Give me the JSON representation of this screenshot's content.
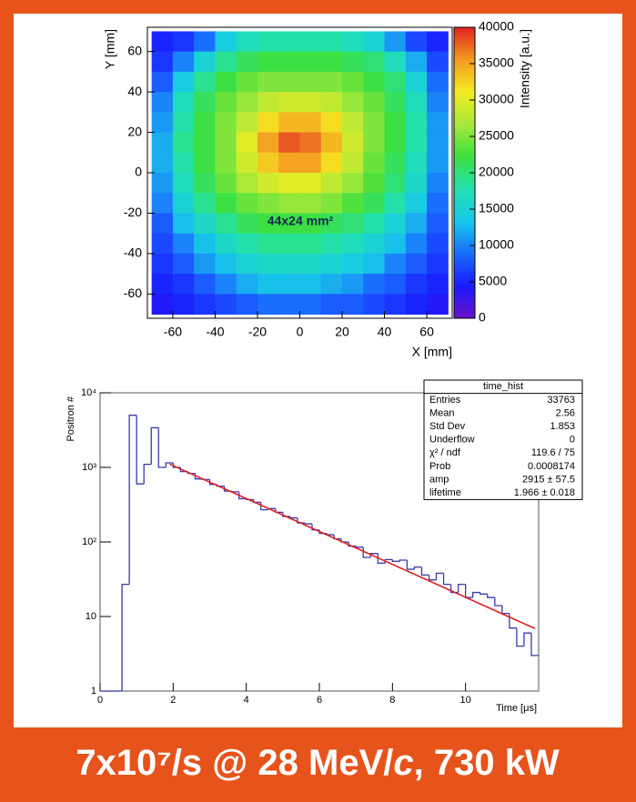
{
  "chart_data": [
    {
      "type": "heatmap",
      "xlabel": "X [mm]",
      "ylabel": "Y [mm]",
      "zlabel": "Intensity [a.u.]",
      "annotation": "44x24 mm²",
      "xlim": [
        -72,
        72
      ],
      "ylim": [
        -72,
        72
      ],
      "zlim": [
        0,
        40000
      ],
      "xticks": [
        -60,
        -40,
        -20,
        0,
        20,
        40,
        60
      ],
      "yticks": [
        -60,
        -40,
        -20,
        0,
        20,
        40,
        60
      ],
      "zticks": [
        0,
        5000,
        10000,
        15000,
        20000,
        25000,
        30000,
        35000,
        40000
      ],
      "colorscale": [
        "#6b12c8",
        "#1a1aff",
        "#1a6cff",
        "#18c8e8",
        "#22e0b0",
        "#3ee03e",
        "#a8e83a",
        "#f4ec22",
        "#f49a22",
        "#e02222"
      ],
      "x": [
        -65,
        -55,
        -45,
        -35,
        -25,
        -15,
        -5,
        5,
        15,
        25,
        35,
        45,
        55,
        65
      ],
      "y": [
        65,
        55,
        45,
        35,
        25,
        15,
        5,
        -5,
        -15,
        -25,
        -35,
        -45,
        -55,
        -65
      ],
      "z": [
        [
          5000,
          6000,
          9000,
          14000,
          17000,
          18000,
          18000,
          18000,
          18000,
          17000,
          15000,
          11000,
          7000,
          5000
        ],
        [
          6000,
          10000,
          15000,
          19000,
          21000,
          22000,
          22000,
          22000,
          22000,
          21000,
          20000,
          17000,
          12000,
          7000
        ],
        [
          8000,
          14000,
          19000,
          22000,
          24000,
          25000,
          25000,
          25000,
          25000,
          24000,
          22000,
          20000,
          15000,
          9000
        ],
        [
          10000,
          17000,
          21000,
          24000,
          26000,
          28000,
          29000,
          29000,
          28000,
          26000,
          24000,
          21000,
          17000,
          10000
        ],
        [
          11000,
          18000,
          22000,
          25000,
          28000,
          32000,
          34000,
          34000,
          32000,
          28000,
          25000,
          22000,
          18000,
          11000
        ],
        [
          12000,
          19000,
          22000,
          25000,
          30000,
          35000,
          38000,
          37000,
          34000,
          29000,
          25000,
          22000,
          18000,
          11000
        ],
        [
          12000,
          18000,
          22000,
          25000,
          29000,
          33000,
          35000,
          35000,
          32000,
          28000,
          24000,
          21000,
          17000,
          11000
        ],
        [
          11000,
          17000,
          21000,
          24000,
          27000,
          29000,
          30000,
          30000,
          28000,
          26000,
          23000,
          20000,
          16000,
          10000
        ],
        [
          10000,
          15000,
          19000,
          22000,
          24000,
          25000,
          26000,
          26000,
          25000,
          23000,
          21000,
          18000,
          14000,
          9000
        ],
        [
          8000,
          13000,
          16000,
          19000,
          21000,
          22000,
          22000,
          22000,
          21000,
          20000,
          18000,
          15000,
          12000,
          8000
        ],
        [
          7000,
          10000,
          13000,
          16000,
          18000,
          19000,
          19000,
          19000,
          18000,
          17000,
          15000,
          13000,
          10000,
          7000
        ],
        [
          6000,
          8000,
          11000,
          13000,
          15000,
          16000,
          16000,
          16000,
          15000,
          14000,
          13000,
          10000,
          8000,
          6000
        ],
        [
          5000,
          6000,
          8000,
          10000,
          12000,
          13000,
          13000,
          13000,
          12000,
          11000,
          9000,
          8000,
          6000,
          5000
        ],
        [
          4000,
          5000,
          6000,
          7000,
          8000,
          9000,
          9000,
          9000,
          8000,
          8000,
          7000,
          6000,
          5000,
          4000
        ]
      ]
    },
    {
      "type": "histogram",
      "xlabel": "Time [μs]",
      "ylabel": "Positron #",
      "color": "#3a3aa8",
      "xlim": [
        0,
        12
      ],
      "ylim": [
        1,
        10000
      ],
      "log_y": true,
      "xticks": [
        0,
        2,
        4,
        6,
        8,
        10
      ],
      "yticks": [
        1,
        10,
        {
          "value": 100,
          "label": "10²"
        },
        {
          "value": 1000,
          "label": "10³"
        },
        {
          "value": 10000,
          "label": "10⁴"
        }
      ],
      "bins": [
        0,
        0.2,
        0.4,
        0.6,
        0.8,
        1,
        1.2,
        1.4,
        1.6,
        1.8,
        2,
        2.2,
        2.4,
        2.6,
        2.8,
        3,
        3.2,
        3.4,
        3.6,
        3.8,
        4,
        4.2,
        4.4,
        4.6,
        4.8,
        5,
        5.2,
        5.4,
        5.6,
        5.8,
        6,
        6.2,
        6.4,
        6.6,
        6.8,
        7,
        7.2,
        7.4,
        7.6,
        7.8,
        8,
        8.2,
        8.4,
        8.6,
        8.8,
        9,
        9.2,
        9.4,
        9.6,
        9.8,
        10,
        10.2,
        10.4,
        10.6,
        10.8,
        11,
        11.2,
        11.4,
        11.6,
        11.8,
        12
      ],
      "values": [
        0,
        0,
        0,
        27,
        5000,
        600,
        1100,
        3400,
        1000,
        1150,
        1000,
        880,
        830,
        700,
        690,
        590,
        560,
        480,
        470,
        380,
        370,
        340,
        270,
        280,
        250,
        220,
        210,
        180,
        175,
        145,
        130,
        125,
        110,
        100,
        88,
        85,
        62,
        70,
        52,
        58,
        55,
        57,
        43,
        46,
        36,
        31,
        38,
        27,
        21,
        27,
        18,
        21,
        20,
        18,
        14,
        11,
        7,
        4,
        6,
        3
      ],
      "fit": {
        "color": "#e02020",
        "x": [
          1.9,
          11.9
        ],
        "values": [
          1109,
          6.9
        ]
      },
      "stats": {
        "title": "time_hist",
        "rows": [
          {
            "label": "Entries",
            "value": "33763"
          },
          {
            "label": "Mean",
            "value": "2.56"
          },
          {
            "label": "Std Dev",
            "value": "1.853"
          },
          {
            "label": "Underflow",
            "value": "0"
          },
          {
            "label": "χ² / ndf",
            "value": "119.6 / 75"
          },
          {
            "label": "Prob",
            "value": "0.0008174"
          },
          {
            "label": "amp",
            "value": "2915 ± 57.5"
          },
          {
            "label": "lifetime",
            "value": "1.966 ± 0.018"
          }
        ]
      }
    }
  ],
  "caption": [
    "7x10⁷/s @ 28 MeV/",
    "c",
    ", 730 kW"
  ]
}
